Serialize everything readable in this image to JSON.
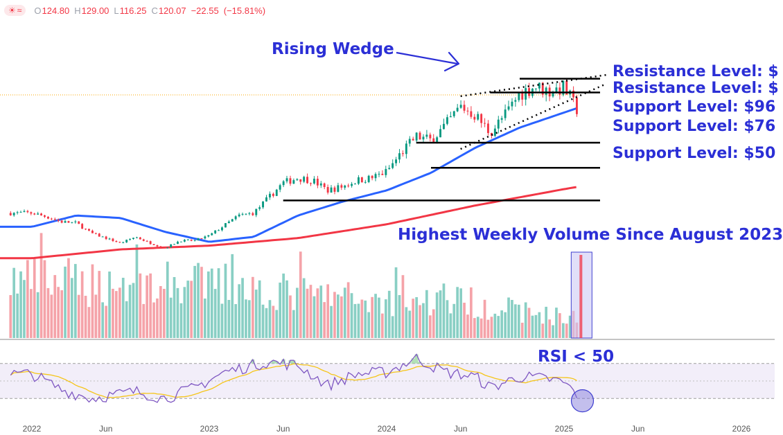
{
  "ohlc_bar": {
    "open_label": "O",
    "open": "124.80",
    "high_label": "H",
    "high": "129.00",
    "low_label": "L",
    "low": "116.25",
    "close_label": "C",
    "close": "120.07",
    "change": "−22.55",
    "change_pct": "(−15.81%)",
    "icons": [
      "sun-icon",
      "wave-icon"
    ],
    "down_color": "#f23645"
  },
  "annotations": {
    "rising_wedge": "Rising Wedge",
    "volume_note": "Highest Weekly Volume Since August 2023",
    "rsi_note": "RSI < 50",
    "text_color": "#2b2fd6"
  },
  "level_labels": [
    "Resistance Level: $",
    "Resistance Level: $",
    "Support Level: $96",
    "Support Level: $76",
    "Support Level: $50"
  ],
  "chart_data": {
    "type": "candlestick",
    "x_axis": {
      "ticks": [
        "2022",
        "Jun",
        "2023",
        "Jun",
        "2024",
        "Jun",
        "2025",
        "Jun",
        "2026"
      ]
    },
    "colors": {
      "up": "#089981",
      "down": "#f23645",
      "ma_fast": "#2962ff",
      "ma_slow": "#f23645",
      "rsi": "#7e57c2",
      "rsi_ma": "#f5c518"
    },
    "price_anchors": [
      {
        "date": "2022-01",
        "price": 40
      },
      {
        "date": "2022-02",
        "price": 37
      },
      {
        "date": "2022-03",
        "price": 33
      },
      {
        "date": "2022-04",
        "price": 32
      },
      {
        "date": "2022-05",
        "price": 24
      },
      {
        "date": "2022-06",
        "price": 20
      },
      {
        "date": "2022-07",
        "price": 16
      },
      {
        "date": "2022-08",
        "price": 21
      },
      {
        "date": "2022-09",
        "price": 16
      },
      {
        "date": "2022-10",
        "price": 12
      },
      {
        "date": "2022-11",
        "price": 18
      },
      {
        "date": "2022-12",
        "price": 18
      },
      {
        "date": "2023-01",
        "price": 22
      },
      {
        "date": "2023-02",
        "price": 30
      },
      {
        "date": "2023-03",
        "price": 38
      },
      {
        "date": "2023-04",
        "price": 40
      },
      {
        "date": "2023-05",
        "price": 52
      },
      {
        "date": "2023-06",
        "price": 64
      },
      {
        "date": "2023-07",
        "price": 68
      },
      {
        "date": "2023-08",
        "price": 66
      },
      {
        "date": "2023-09",
        "price": 58
      },
      {
        "date": "2023-10",
        "price": 61
      },
      {
        "date": "2023-11",
        "price": 66
      },
      {
        "date": "2023-12",
        "price": 68
      },
      {
        "date": "2024-01",
        "price": 73
      },
      {
        "date": "2024-02",
        "price": 88
      },
      {
        "date": "2024-03",
        "price": 101
      },
      {
        "date": "2024-04",
        "price": 98
      },
      {
        "date": "2024-05",
        "price": 110
      },
      {
        "date": "2024-06",
        "price": 125
      },
      {
        "date": "2024-07",
        "price": 118
      },
      {
        "date": "2024-08",
        "price": 104
      },
      {
        "date": "2024-09",
        "price": 118
      },
      {
        "date": "2024-10",
        "price": 135
      },
      {
        "date": "2024-11",
        "price": 141
      },
      {
        "date": "2024-12",
        "price": 137
      },
      {
        "date": "2025-01",
        "price": 140
      },
      {
        "date": "2025-02",
        "price": 120
      }
    ],
    "moving_averages": [
      {
        "type": "fast",
        "points": [
          {
            "date": "2022-01",
            "price": 29
          },
          {
            "date": "2022-04",
            "price": 38
          },
          {
            "date": "2022-07",
            "price": 36
          },
          {
            "date": "2022-10",
            "price": 25
          },
          {
            "date": "2023-01",
            "price": 17
          },
          {
            "date": "2023-04",
            "price": 21
          },
          {
            "date": "2023-07",
            "price": 38
          },
          {
            "date": "2023-10",
            "price": 49
          },
          {
            "date": "2024-01",
            "price": 58
          },
          {
            "date": "2024-04",
            "price": 72
          },
          {
            "date": "2024-07",
            "price": 92
          },
          {
            "date": "2024-10",
            "price": 108
          },
          {
            "date": "2025-01",
            "price": 120
          },
          {
            "date": "2025-02",
            "price": 124
          }
        ]
      },
      {
        "type": "slow",
        "points": [
          {
            "date": "2022-01",
            "price": 4
          },
          {
            "date": "2022-07",
            "price": 11
          },
          {
            "date": "2023-01",
            "price": 14
          },
          {
            "date": "2023-07",
            "price": 20
          },
          {
            "date": "2024-01",
            "price": 31
          },
          {
            "date": "2024-07",
            "price": 46
          },
          {
            "date": "2025-01",
            "price": 59
          },
          {
            "date": "2025-02",
            "price": 61
          }
        ]
      }
    ],
    "horizontal_levels": [
      {
        "kind": "resistance",
        "price": 147,
        "from": "2024-10"
      },
      {
        "kind": "resistance",
        "price": 136,
        "from": "2024-08"
      },
      {
        "kind": "support",
        "price": 96,
        "from": "2024-03"
      },
      {
        "kind": "support",
        "price": 76,
        "from": "2024-04"
      },
      {
        "kind": "support",
        "price": 50,
        "from": "2023-06"
      }
    ],
    "wedge_trendlines": [
      {
        "from": {
          "date": "2024-06",
          "price": 133
        },
        "to": {
          "date": "2025-02",
          "price": 150
        }
      },
      {
        "from": {
          "date": "2024-06",
          "price": 91
        },
        "to": {
          "date": "2025-02",
          "price": 143
        }
      }
    ],
    "volume_anchors": [
      {
        "date": "2022-01",
        "value": 85
      },
      {
        "date": "2022-06",
        "value": 80
      },
      {
        "date": "2022-12",
        "value": 80
      },
      {
        "date": "2023-06",
        "value": 68
      },
      {
        "date": "2024-01",
        "value": 55
      },
      {
        "date": "2024-06",
        "value": 55
      },
      {
        "date": "2024-10",
        "value": 40
      },
      {
        "date": "2025-02",
        "value": 28
      }
    ],
    "highlighted_volume": {
      "date": "2025-02",
      "value": 120
    },
    "rsi": {
      "range": [
        0,
        100
      ],
      "levels": [
        70,
        30
      ],
      "anchors": [
        {
          "date": "2022-01",
          "value": 58
        },
        {
          "date": "2022-03",
          "value": 40
        },
        {
          "date": "2022-05",
          "value": 30
        },
        {
          "date": "2022-08",
          "value": 38
        },
        {
          "date": "2022-10",
          "value": 30
        },
        {
          "date": "2022-12",
          "value": 42
        },
        {
          "date": "2023-02",
          "value": 60
        },
        {
          "date": "2023-05",
          "value": 72
        },
        {
          "date": "2023-07",
          "value": 68
        },
        {
          "date": "2023-09",
          "value": 45
        },
        {
          "date": "2023-11",
          "value": 58
        },
        {
          "date": "2024-01",
          "value": 60
        },
        {
          "date": "2024-03",
          "value": 76
        },
        {
          "date": "2024-05",
          "value": 60
        },
        {
          "date": "2024-07",
          "value": 55
        },
        {
          "date": "2024-08",
          "value": 42
        },
        {
          "date": "2024-10",
          "value": 55
        },
        {
          "date": "2024-12",
          "value": 52
        },
        {
          "date": "2025-01",
          "value": 48
        },
        {
          "date": "2025-02",
          "value": 33
        }
      ]
    }
  }
}
